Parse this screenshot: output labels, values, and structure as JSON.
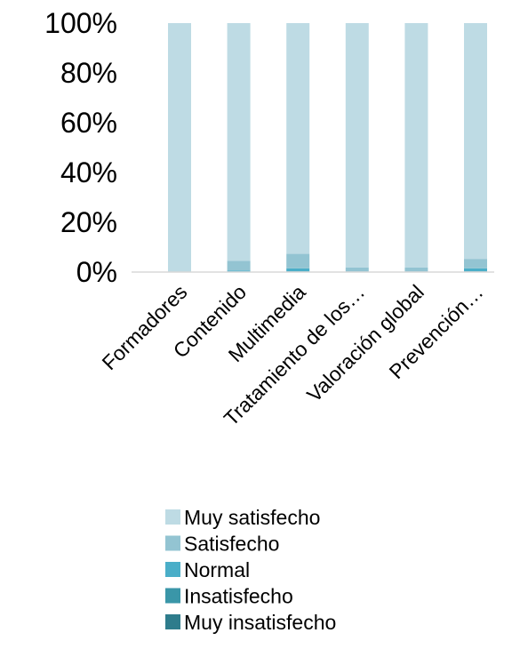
{
  "chart_data": {
    "type": "bar",
    "stacked": true,
    "percent": true,
    "categories": [
      "Formadores",
      "Contenido",
      "Multimedia",
      "Tratamiento de los…",
      "Valoración global",
      "Prevención…"
    ],
    "y_ticks": [
      "100%",
      "80%",
      "60%",
      "40%",
      "20%",
      "0%"
    ],
    "ylim": [
      0,
      100
    ],
    "grid": false,
    "legend_position": "bottom",
    "series": [
      {
        "name": "Muy insatisfecho",
        "color": "#2E7C8C",
        "values": [
          0,
          0,
          0,
          0,
          0,
          0
        ]
      },
      {
        "name": "Insatisfecho",
        "color": "#3A96A8",
        "values": [
          0,
          0.2,
          0.3,
          0,
          0,
          0.3
        ]
      },
      {
        "name": "Normal",
        "color": "#4AAEC8",
        "values": [
          0,
          0.4,
          1.2,
          0,
          0,
          1.2
        ]
      },
      {
        "name": "Satisfecho",
        "color": "#93C4D2",
        "values": [
          0.3,
          3.9,
          5.8,
          1.8,
          1.8,
          3.8
        ]
      },
      {
        "name": "Muy satisfecho",
        "color": "#BEDBE4",
        "values": [
          99.7,
          95.5,
          92.7,
          98.2,
          98.2,
          94.7
        ]
      }
    ],
    "legend_order": [
      "Muy satisfecho",
      "Satisfecho",
      "Normal",
      "Insatisfecho",
      "Muy insatisfecho"
    ]
  }
}
